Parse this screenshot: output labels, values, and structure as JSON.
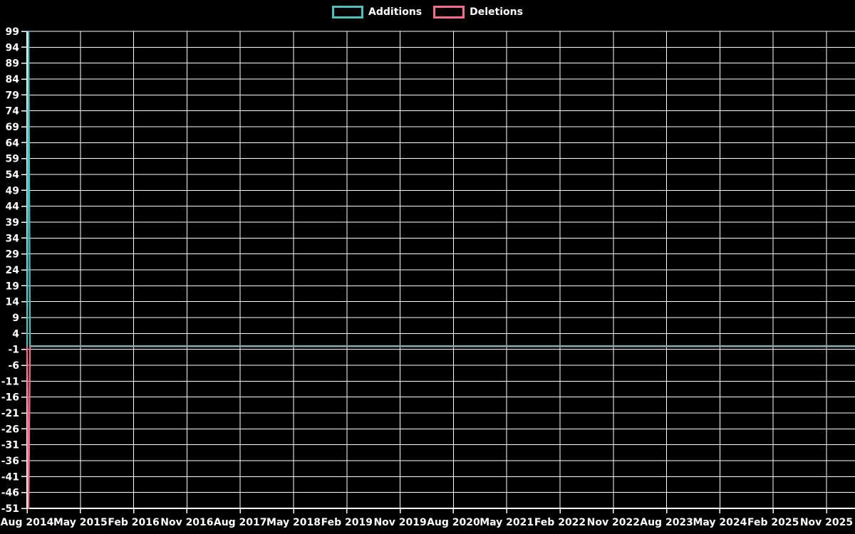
{
  "page": {
    "background": "#000000"
  },
  "legend": {
    "items": [
      {
        "label": "Additions",
        "color": "#4dbfbf"
      },
      {
        "label": "Deletions",
        "color": "#f56c8b"
      }
    ]
  },
  "chart_data": {
    "type": "line",
    "title": "",
    "xlabel": "",
    "ylabel": "",
    "grid": true,
    "legend_position": "top-center",
    "background": "#000000",
    "colors": {
      "additions": "#4dbfbf",
      "deletions": "#f56c8b",
      "overlap_zero_line": "#8fa7af",
      "grid": "#ffffff",
      "axis": "#ffffff",
      "text": "#ffffff"
    },
    "x_axis": {
      "start": "Aug 2014",
      "end": "Nov 2025",
      "tick_interval_months": 9,
      "tick_labels": [
        "Aug 2014",
        "May 2015",
        "Feb 2016",
        "Nov 2016",
        "Aug 2017",
        "May 2018",
        "Feb 2019",
        "Nov 2019",
        "Aug 2020",
        "May 2021",
        "Feb 2022",
        "Nov 2022",
        "Aug 2023",
        "May 2024",
        "Feb 2025",
        "Nov 2025"
      ],
      "total_months_shown": 140
    },
    "y_axis": {
      "min": -51,
      "max": 99,
      "tick_step": 5,
      "tick_labels": [
        99,
        94,
        89,
        84,
        79,
        74,
        69,
        64,
        59,
        54,
        49,
        44,
        39,
        34,
        29,
        24,
        19,
        14,
        9,
        4,
        -1,
        -6,
        -11,
        -16,
        -21,
        -26,
        -31,
        -36,
        -41,
        -46,
        -51
      ]
    },
    "series": [
      {
        "name": "Additions",
        "color": "#4dbfbf",
        "summary": "Spike of +99 additions at the first point (Aug 2014), 0 for all later dates",
        "peak_value": 99,
        "path_months_value": [
          [
            0,
            0
          ],
          [
            0.25,
            99
          ],
          [
            0.5,
            0
          ],
          [
            140,
            0
          ]
        ]
      },
      {
        "name": "Deletions",
        "color": "#f56c8b",
        "summary": "Dip of -51 deletions at the first point (Aug 2014), 0 for all later dates",
        "peak_value": -51,
        "path_months_value": [
          [
            0,
            0
          ],
          [
            0.25,
            -51
          ],
          [
            0.5,
            0
          ],
          [
            140,
            0
          ]
        ]
      }
    ],
    "overlap_flat_line": {
      "value": 0,
      "from_month": 0.5,
      "to_month": 140,
      "color": "#8fa7af"
    }
  }
}
